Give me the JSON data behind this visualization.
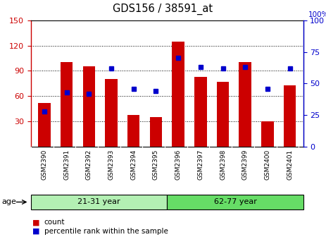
{
  "title": "GDS156 / 38591_at",
  "samples": [
    "GSM2390",
    "GSM2391",
    "GSM2392",
    "GSM2393",
    "GSM2394",
    "GSM2395",
    "GSM2396",
    "GSM2397",
    "GSM2398",
    "GSM2399",
    "GSM2400",
    "GSM2401"
  ],
  "counts": [
    52,
    100,
    95,
    80,
    38,
    35,
    125,
    83,
    77,
    100,
    30,
    73
  ],
  "percentiles": [
    28,
    43,
    42,
    62,
    46,
    44,
    70,
    63,
    62,
    63,
    46,
    62
  ],
  "ylim_left": [
    0,
    150
  ],
  "ylim_right": [
    0,
    100
  ],
  "yticks_left": [
    30,
    60,
    90,
    120,
    150
  ],
  "yticks_right": [
    0,
    25,
    50,
    75,
    100
  ],
  "group1_label": "21-31 year",
  "group2_label": "62-77 year",
  "group1_color": "#b3f0b3",
  "group2_color": "#66dd66",
  "age_label": "age",
  "bar_color": "#CC0000",
  "marker_color": "#0000CC",
  "legend_count": "count",
  "legend_pct": "percentile rank within the sample",
  "tick_color_left": "#CC0000",
  "tick_color_right": "#0000CC",
  "background_color": "#ffffff",
  "bar_width": 0.55,
  "xtick_bg": "#d8d8d8",
  "spine_color": "#000000"
}
